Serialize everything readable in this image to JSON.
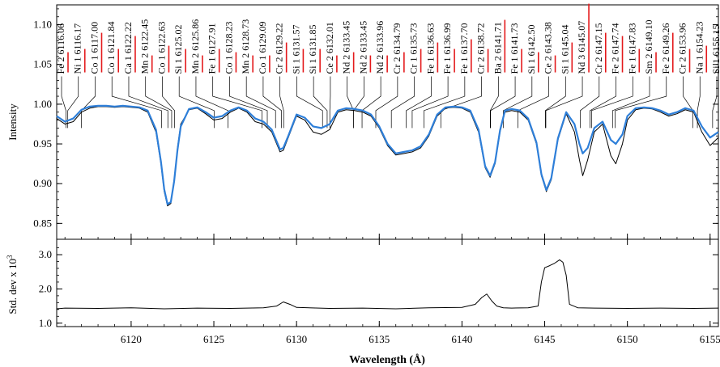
{
  "chart_data": [
    {
      "type": "line",
      "panel": "top",
      "title": "",
      "xlabel": "",
      "ylabel": "Intensity",
      "xlim": [
        6115.5,
        6155.5
      ],
      "ylim": [
        0.83,
        1.125
      ],
      "x_ticks": [
        6120,
        6125,
        6130,
        6135,
        6140,
        6145,
        6150,
        6155
      ],
      "y_ticks": [
        0.85,
        0.9,
        0.95,
        1.0,
        1.05,
        1.1
      ],
      "y_tick_labels": [
        "0.85",
        "0.90",
        "0.95",
        "1.00",
        "1.05",
        "1.10"
      ],
      "grid": false,
      "colors": {
        "observed": "#000000",
        "model": "#2e7fd9",
        "line_marker": "#e41a1c"
      },
      "line_ids": [
        {
          "label": "Fe 2  6116.06",
          "x": 6116.06,
          "strength": 0.25
        },
        {
          "label": "Ni 1  6116.17",
          "x": 6116.17,
          "strength": 0.3
        },
        {
          "label": "Co 1  6117.00",
          "x": 6117.0,
          "strength": 0.55
        },
        {
          "label": "Co 1  6121.84",
          "x": 6121.84,
          "strength": 0.3
        },
        {
          "label": "Ca 1  6122.22",
          "x": 6122.22,
          "strength": 0.5
        },
        {
          "label": "Mn 2 6122.45",
          "x": 6122.45,
          "strength": 0.2
        },
        {
          "label": "Co 1  6122.63",
          "x": 6122.63,
          "strength": 0.35
        },
        {
          "label": "Si 1  6125.02",
          "x": 6125.02,
          "strength": 0.3
        },
        {
          "label": "Mn 2 6125.86",
          "x": 6125.86,
          "strength": 0.2
        },
        {
          "label": "Fe 1  6127.91",
          "x": 6127.91,
          "strength": 0.3
        },
        {
          "label": "Co 1  6128.23",
          "x": 6128.23,
          "strength": 0.25
        },
        {
          "label": "Mn 2 6128.73",
          "x": 6128.73,
          "strength": 0.2
        },
        {
          "label": "Co 1  6129.09",
          "x": 6129.09,
          "strength": 0.2
        },
        {
          "label": "Cr 2  6129.22",
          "x": 6129.22,
          "strength": 0.4
        },
        {
          "label": "Si 1  6131.57",
          "x": 6131.57,
          "strength": 0.3
        },
        {
          "label": "Si 1  6131.85",
          "x": 6131.85,
          "strength": 0.3
        },
        {
          "label": "Ce 2  6132.01",
          "x": 6132.01,
          "strength": 0.2
        },
        {
          "label": "Nd 2  6133.45",
          "x": 6133.45,
          "strength": 0.25
        },
        {
          "label": "Nd 2  6133.45",
          "x": 6133.45,
          "strength": 0.2
        },
        {
          "label": "Nd 2  6133.96",
          "x": 6133.96,
          "strength": 0.2
        },
        {
          "label": "Cr 2  6134.79",
          "x": 6134.79,
          "strength": 0.25
        },
        {
          "label": "Cr 1  6135.73",
          "x": 6135.73,
          "strength": 0.3
        },
        {
          "label": "Fe 1  6136.63",
          "x": 6136.63,
          "strength": 0.4
        },
        {
          "label": "Fe 1  6136.99",
          "x": 6136.99,
          "strength": 0.3
        },
        {
          "label": "Fe 1  6137.70",
          "x": 6137.7,
          "strength": 0.45
        },
        {
          "label": "Cr 2  6138.72",
          "x": 6138.72,
          "strength": 0.3
        },
        {
          "label": "Ba 2  6141.71",
          "x": 6141.71,
          "strength": 0.75
        },
        {
          "label": "Fe 1  6141.73",
          "x": 6141.73,
          "strength": 0.3
        },
        {
          "label": "Si 1  6142.50",
          "x": 6142.5,
          "strength": 0.25
        },
        {
          "label": "Ce 2  6143.38",
          "x": 6143.38,
          "strength": 0.2
        },
        {
          "label": "Si 1  6145.04",
          "x": 6145.04,
          "strength": 0.4
        },
        {
          "label": "Nd 3  6145.07",
          "x": 6145.07,
          "strength": 1.0
        },
        {
          "label": "Cr 2  6147.15",
          "x": 6147.15,
          "strength": 0.55
        },
        {
          "label": "Fe 2  6147.74",
          "x": 6147.74,
          "strength": 0.5
        },
        {
          "label": "Fe 1  6147.83",
          "x": 6147.83,
          "strength": 0.3
        },
        {
          "label": "Sm 2 6149.10",
          "x": 6149.1,
          "strength": 0.25
        },
        {
          "label": "Fe 2  6149.26",
          "x": 6149.26,
          "strength": 0.55
        },
        {
          "label": "Cr 2  6153.96",
          "x": 6153.96,
          "strength": 0.3
        },
        {
          "label": "Na 1  6154.23",
          "x": 6154.23,
          "strength": 0.35
        },
        {
          "label": "Si 1  6155.15",
          "x": 6155.15,
          "strength": 0.3
        }
      ],
      "series": [
        {
          "role": "observed",
          "color": "#000000",
          "x": [
            6115.5,
            6116.0,
            6116.5,
            6117.0,
            6117.5,
            6118.0,
            6118.5,
            6119.0,
            6119.5,
            6120.0,
            6120.5,
            6121.0,
            6121.5,
            6121.8,
            6122.0,
            6122.2,
            6122.4,
            6122.6,
            6122.8,
            6123.0,
            6123.5,
            6124.0,
            6124.5,
            6125.0,
            6125.5,
            6126.0,
            6126.5,
            6127.0,
            6127.5,
            6128.0,
            6128.5,
            6128.8,
            6129.0,
            6129.2,
            6129.5,
            6130.0,
            6130.5,
            6131.0,
            6131.5,
            6132.0,
            6132.5,
            6133.0,
            6133.5,
            6134.0,
            6134.5,
            6135.0,
            6135.5,
            6136.0,
            6136.5,
            6137.0,
            6137.5,
            6138.0,
            6138.5,
            6139.0,
            6139.5,
            6140.0,
            6140.5,
            6141.0,
            6141.4,
            6141.7,
            6142.0,
            6142.3,
            6142.6,
            6143.0,
            6143.5,
            6144.0,
            6144.5,
            6144.8,
            6145.1,
            6145.4,
            6145.8,
            6146.3,
            6146.8,
            6147.1,
            6147.3,
            6147.6,
            6148.0,
            6148.5,
            6149.0,
            6149.3,
            6149.7,
            6150.0,
            6150.5,
            6151.0,
            6151.5,
            6152.0,
            6152.5,
            6153.0,
            6153.5,
            6154.0,
            6154.5,
            6155.0,
            6155.5
          ],
          "y": [
            0.982,
            0.975,
            0.978,
            0.99,
            0.995,
            0.997,
            0.997,
            0.996,
            0.997,
            0.996,
            0.995,
            0.99,
            0.965,
            0.925,
            0.89,
            0.872,
            0.875,
            0.905,
            0.945,
            0.975,
            0.993,
            0.995,
            0.988,
            0.98,
            0.982,
            0.99,
            0.995,
            0.99,
            0.978,
            0.975,
            0.965,
            0.95,
            0.94,
            0.942,
            0.958,
            0.985,
            0.98,
            0.965,
            0.962,
            0.968,
            0.99,
            0.993,
            0.992,
            0.99,
            0.985,
            0.97,
            0.948,
            0.936,
            0.938,
            0.94,
            0.945,
            0.96,
            0.985,
            0.995,
            0.996,
            0.995,
            0.99,
            0.965,
            0.92,
            0.908,
            0.925,
            0.965,
            0.99,
            0.992,
            0.99,
            0.98,
            0.95,
            0.91,
            0.89,
            0.905,
            0.955,
            0.988,
            0.965,
            0.93,
            0.91,
            0.93,
            0.965,
            0.975,
            0.935,
            0.925,
            0.95,
            0.98,
            0.993,
            0.995,
            0.994,
            0.99,
            0.985,
            0.988,
            0.993,
            0.99,
            0.965,
            0.948,
            0.958
          ]
        },
        {
          "role": "model",
          "color": "#2e7fd9",
          "x": [
            6115.5,
            6116.0,
            6116.5,
            6117.0,
            6117.5,
            6118.0,
            6118.5,
            6119.0,
            6119.5,
            6120.0,
            6120.5,
            6121.0,
            6121.5,
            6121.8,
            6122.0,
            6122.2,
            6122.4,
            6122.6,
            6122.8,
            6123.0,
            6123.5,
            6124.0,
            6124.5,
            6125.0,
            6125.5,
            6126.0,
            6126.5,
            6127.0,
            6127.5,
            6128.0,
            6128.5,
            6128.8,
            6129.0,
            6129.2,
            6129.5,
            6130.0,
            6130.5,
            6131.0,
            6131.5,
            6132.0,
            6132.5,
            6133.0,
            6133.5,
            6134.0,
            6134.5,
            6135.0,
            6135.5,
            6136.0,
            6136.5,
            6137.0,
            6137.5,
            6138.0,
            6138.5,
            6139.0,
            6139.5,
            6140.0,
            6140.5,
            6141.0,
            6141.4,
            6141.7,
            6142.0,
            6142.3,
            6142.6,
            6143.0,
            6143.5,
            6144.0,
            6144.5,
            6144.8,
            6145.1,
            6145.4,
            6145.8,
            6146.3,
            6146.8,
            6147.1,
            6147.3,
            6147.6,
            6148.0,
            6148.5,
            6149.0,
            6149.3,
            6149.7,
            6150.0,
            6150.5,
            6151.0,
            6151.5,
            6152.0,
            6152.5,
            6153.0,
            6153.5,
            6154.0,
            6154.5,
            6155.0,
            6155.5
          ],
          "y": [
            0.985,
            0.978,
            0.982,
            0.993,
            0.997,
            0.998,
            0.998,
            0.997,
            0.998,
            0.997,
            0.996,
            0.992,
            0.968,
            0.928,
            0.893,
            0.874,
            0.877,
            0.903,
            0.942,
            0.972,
            0.994,
            0.996,
            0.99,
            0.983,
            0.985,
            0.992,
            0.996,
            0.992,
            0.982,
            0.978,
            0.968,
            0.953,
            0.943,
            0.945,
            0.96,
            0.987,
            0.983,
            0.972,
            0.97,
            0.975,
            0.992,
            0.995,
            0.994,
            0.992,
            0.987,
            0.972,
            0.95,
            0.938,
            0.94,
            0.942,
            0.947,
            0.962,
            0.987,
            0.996,
            0.997,
            0.996,
            0.992,
            0.968,
            0.922,
            0.91,
            0.927,
            0.967,
            0.992,
            0.994,
            0.992,
            0.982,
            0.952,
            0.912,
            0.892,
            0.907,
            0.957,
            0.99,
            0.975,
            0.95,
            0.938,
            0.945,
            0.97,
            0.978,
            0.955,
            0.95,
            0.962,
            0.985,
            0.995,
            0.996,
            0.995,
            0.992,
            0.987,
            0.99,
            0.995,
            0.992,
            0.972,
            0.958,
            0.965
          ]
        }
      ]
    },
    {
      "type": "line",
      "panel": "bottom",
      "title": "",
      "xlabel": "Wavelength (Å)",
      "ylabel": "Std. dev x 10",
      "ylabel_superscript": "3",
      "xlim": [
        6115.5,
        6155.5
      ],
      "ylim": [
        0.9,
        3.45
      ],
      "x_ticks": [
        6120,
        6125,
        6130,
        6135,
        6140,
        6145,
        6150,
        6155
      ],
      "x_tick_labels": [
        "6120",
        "6125",
        "6130",
        "6135",
        "6140",
        "6145",
        "6150",
        "6155"
      ],
      "y_ticks": [
        1.0,
        2.0,
        3.0
      ],
      "y_tick_labels": [
        "1.0",
        "2.0",
        "3.0"
      ],
      "grid": false,
      "series": [
        {
          "role": "std-dev",
          "color": "#000000",
          "x": [
            6115.5,
            6116.0,
            6118.0,
            6120.0,
            6122.0,
            6124.0,
            6126.0,
            6128.0,
            6128.8,
            6129.2,
            6129.6,
            6130.0,
            6132.0,
            6134.0,
            6136.0,
            6138.0,
            6140.0,
            6140.8,
            6141.2,
            6141.5,
            6141.8,
            6142.1,
            6142.5,
            6143.0,
            6144.0,
            6144.6,
            6144.8,
            6145.0,
            6145.3,
            6145.6,
            6145.9,
            6146.1,
            6146.3,
            6146.5,
            6147.0,
            6148.0,
            6150.0,
            6152.0,
            6154.0,
            6155.5
          ],
          "y": [
            1.42,
            1.44,
            1.43,
            1.45,
            1.42,
            1.44,
            1.43,
            1.45,
            1.5,
            1.62,
            1.55,
            1.46,
            1.43,
            1.44,
            1.42,
            1.45,
            1.46,
            1.55,
            1.75,
            1.85,
            1.65,
            1.5,
            1.45,
            1.44,
            1.45,
            1.5,
            2.2,
            2.62,
            2.68,
            2.75,
            2.85,
            2.78,
            2.4,
            1.55,
            1.45,
            1.44,
            1.43,
            1.44,
            1.43,
            1.44
          ]
        }
      ]
    }
  ]
}
